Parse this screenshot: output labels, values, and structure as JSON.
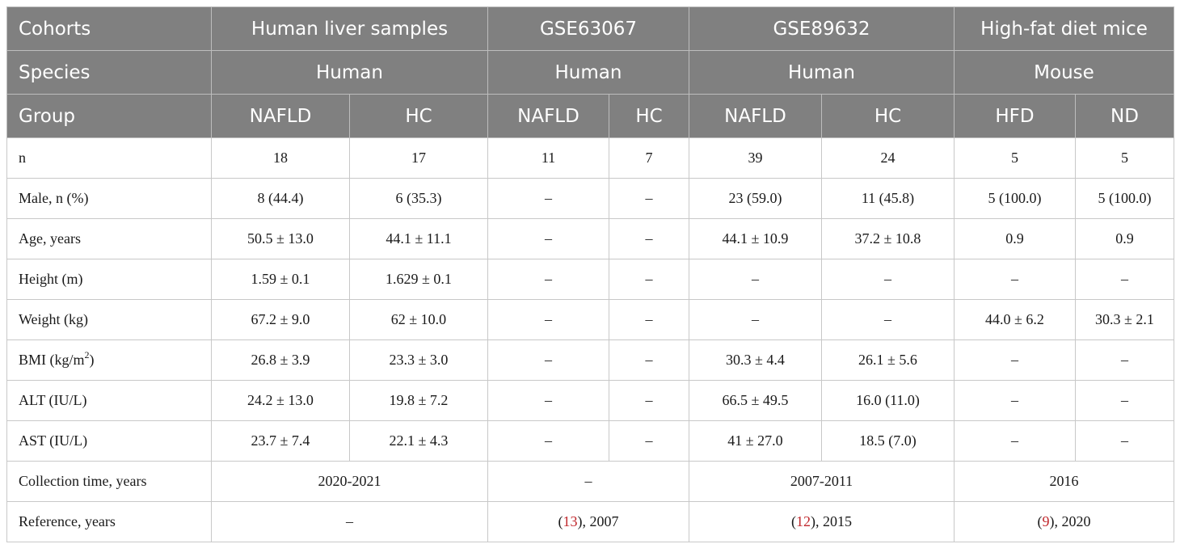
{
  "header": {
    "cohorts_label": "Cohorts",
    "cohorts": [
      "Human liver samples",
      "GSE63067",
      "GSE89632",
      "High-fat diet mice"
    ],
    "species_label": "Species",
    "species": [
      "Human",
      "Human",
      "Human",
      "Mouse"
    ],
    "group_label": "Group",
    "groups": [
      "NAFLD",
      "HC",
      "NAFLD",
      "HC",
      "NAFLD",
      "HC",
      "HFD",
      "ND"
    ]
  },
  "rows": [
    {
      "label": "n",
      "values": [
        "18",
        "17",
        "11",
        "7",
        "39",
        "24",
        "5",
        "5"
      ]
    },
    {
      "label": "Male, n (%)",
      "values": [
        "8 (44.4)",
        "6 (35.3)",
        "–",
        "–",
        "23 (59.0)",
        "11 (45.8)",
        "5 (100.0)",
        "5 (100.0)"
      ]
    },
    {
      "label": "Age, years",
      "values": [
        "50.5 ± 13.0",
        "44.1 ± 11.1",
        "–",
        "–",
        "44.1 ± 10.9",
        "37.2 ± 10.8",
        "0.9",
        "0.9"
      ]
    },
    {
      "label": "Height (m)",
      "values": [
        "1.59 ± 0.1",
        "1.629 ± 0.1",
        "–",
        "–",
        "–",
        "–",
        "–",
        "–"
      ]
    },
    {
      "label": "Weight (kg)",
      "values": [
        "67.2 ± 9.0",
        "62 ± 10.0",
        "–",
        "–",
        "–",
        "–",
        "44.0 ± 6.2",
        "30.3 ± 2.1"
      ]
    },
    {
      "label": "BMI (kg/m",
      "label_sup": "2",
      "label_after": ")",
      "values": [
        "26.8 ± 3.9",
        "23.3 ± 3.0",
        "–",
        "–",
        "30.3 ± 4.4",
        "26.1 ± 5.6",
        "–",
        "–"
      ]
    },
    {
      "label": "ALT (IU/L)",
      "values": [
        "24.2 ± 13.0",
        "19.8 ± 7.2",
        "–",
        "–",
        "66.5 ± 49.5",
        "16.0 (11.0)",
        "–",
        "–"
      ]
    },
    {
      "label": "AST (IU/L)",
      "values": [
        "23.7 ± 7.4",
        "22.1 ± 4.3",
        "–",
        "–",
        "41 ± 27.0",
        "18.5 (7.0)",
        "–",
        "–"
      ]
    }
  ],
  "collection": {
    "label": "Collection time, years",
    "values": [
      "2020-2021",
      "–",
      "2007-2011",
      "2016"
    ]
  },
  "reference": {
    "label": "Reference, years",
    "none": "–",
    "gse63067": {
      "open": "(",
      "ref": "13",
      "close": "), 2007"
    },
    "gse89632": {
      "open": "(",
      "ref": "12",
      "close": "), 2015"
    },
    "mice": {
      "open": "(",
      "ref": "9",
      "close": "), 2020"
    }
  },
  "colors": {
    "header_bg": "#808080",
    "header_text": "#ffffff",
    "reference_link": "#c0282d"
  }
}
